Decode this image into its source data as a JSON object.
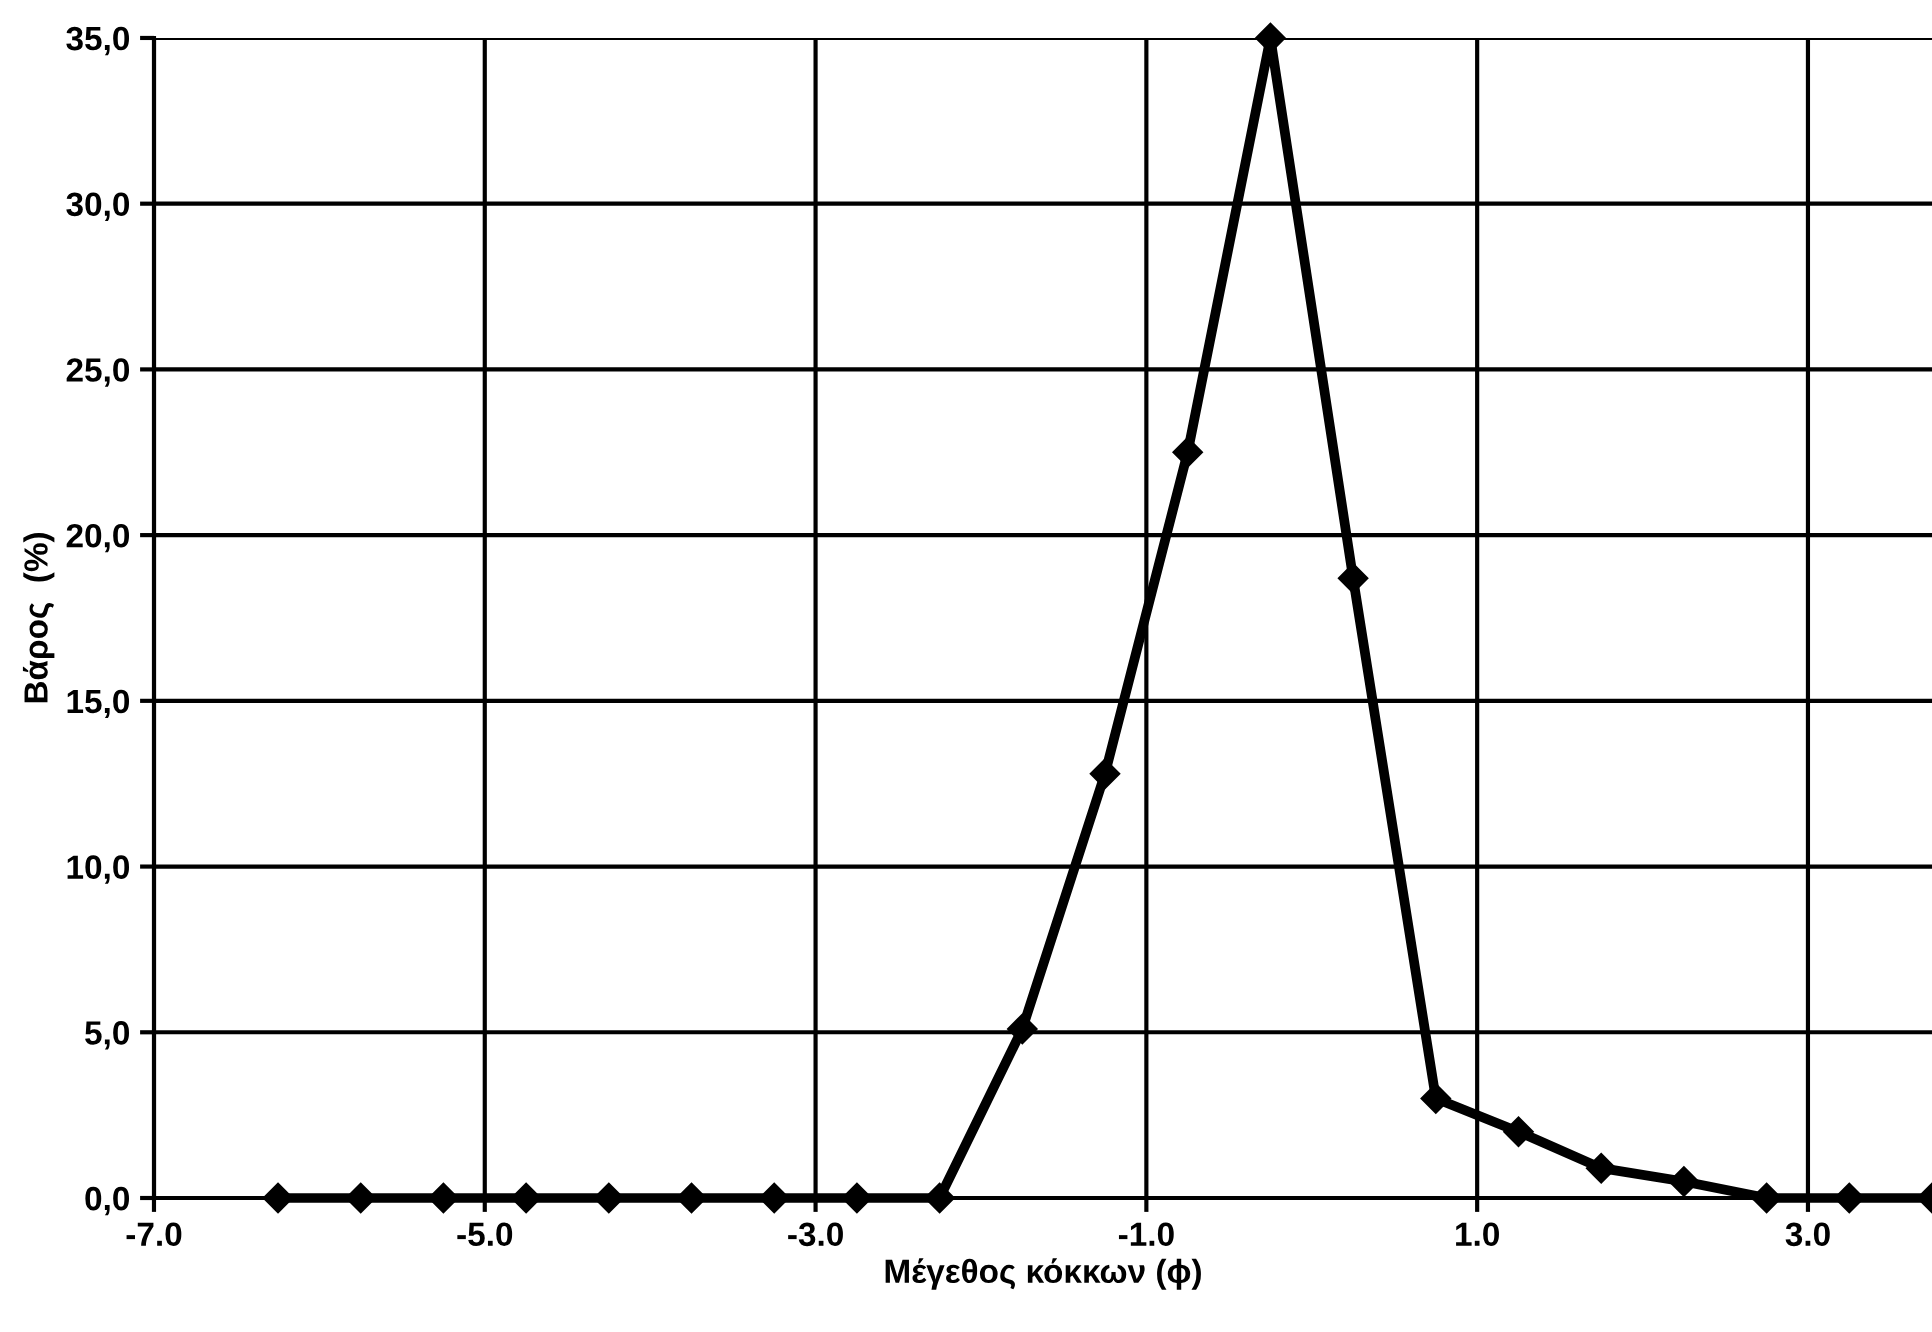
{
  "chart_data": {
    "type": "line",
    "xlabel": "Μέγεθος κόκκων (ϕ)",
    "ylabel": "Βάρος  (%)",
    "x": [
      -6.25,
      -5.75,
      -5.25,
      -4.75,
      -4.25,
      -3.75,
      -3.25,
      -2.75,
      -2.25,
      -1.75,
      -1.25,
      -0.75,
      -0.25,
      0.25,
      0.75,
      1.25,
      1.75,
      2.25,
      2.75,
      3.25,
      3.75
    ],
    "series": [
      {
        "color": "#000000",
        "values": [
          0,
          0,
          0,
          0,
          0,
          0,
          0,
          0,
          0,
          5.1,
          12.8,
          22.5,
          35.0,
          18.7,
          3.0,
          2.0,
          0.9,
          0.5,
          0,
          0,
          0
        ]
      }
    ],
    "xlim": [
      -7,
      3.75
    ],
    "xticks": [
      {
        "value": -7,
        "label": "-7.0"
      },
      {
        "value": -5,
        "label": "-5.0"
      },
      {
        "value": -3,
        "label": "-3.0"
      },
      {
        "value": -1,
        "label": "-1.0"
      },
      {
        "value": 1,
        "label": "1.0"
      },
      {
        "value": 3,
        "label": "3.0"
      }
    ],
    "ylim": [
      0,
      35
    ],
    "yticks": [
      {
        "value": 0,
        "label": "0,0"
      },
      {
        "value": 5,
        "label": "5,0"
      },
      {
        "value": 10,
        "label": "10,0"
      },
      {
        "value": 15,
        "label": "15,0"
      },
      {
        "value": 20,
        "label": "20,0"
      },
      {
        "value": 25,
        "label": "25,0"
      },
      {
        "value": 30,
        "label": "30,0"
      },
      {
        "value": 35,
        "label": "35,0"
      }
    ],
    "grid": true,
    "marker": "diamond",
    "line_style": "solid"
  }
}
